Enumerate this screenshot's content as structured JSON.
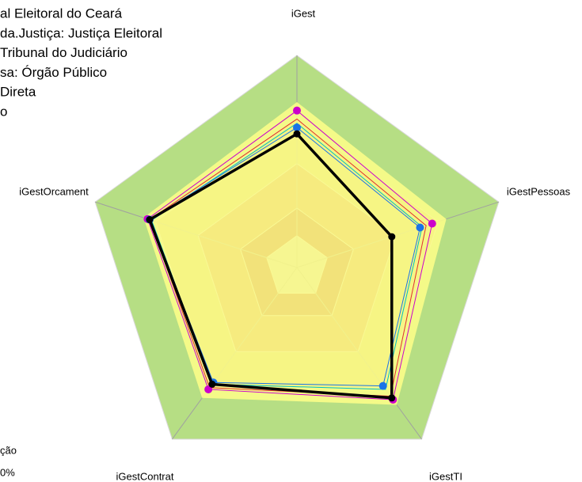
{
  "chart_data": {
    "type": "radar",
    "categories": [
      "iGest",
      "iGestPessoas",
      "iGestTI",
      "iGestContrat",
      "iGestOrcament"
    ],
    "rlim": [
      0,
      1
    ],
    "bands": [
      {
        "value": 1,
        "color": "#b6de84"
      },
      {
        "value": 0.7,
        "color": "#c2bd6a"
      },
      {
        "value": 0.49,
        "color": "#c47a4c"
      },
      {
        "value": 0.28,
        "color": "#a8402c"
      },
      {
        "value": 0.15,
        "color": "#c0c0c0"
      }
    ],
    "legend_text": [
      "al Eleitoral do Ceará",
      "da.Justiça: Justiça Eleitoral",
      "Tribunal do Judiciário",
      "sa: Órgão Público",
      "Direta",
      "o"
    ],
    "footer_text": [
      "ção",
      "0%"
    ],
    "series": [
      {
        "color": "#ffff88",
        "fill": true,
        "values": [
          0.78,
          0.74,
          0.8,
          0.76,
          0.76
        ]
      },
      {
        "color": "#e03030",
        "values": [
          0.7,
          0.64,
          0.75,
          0.7,
          0.73
        ]
      },
      {
        "color": "#cc00cc",
        "markers": true,
        "values": [
          0.74,
          0.67,
          0.77,
          0.71,
          0.74
        ]
      },
      {
        "color": "#00c0c0",
        "values": [
          0.68,
          0.62,
          0.71,
          0.68,
          0.72
        ]
      },
      {
        "color": "#1a73e8",
        "markers": true,
        "values": [
          0.66,
          0.61,
          0.69,
          0.67,
          0.73
        ]
      },
      {
        "color": "#000000",
        "width": 3.5,
        "markers": true,
        "values": [
          0.63,
          0.47,
          0.76,
          0.68,
          0.73
        ]
      }
    ]
  }
}
